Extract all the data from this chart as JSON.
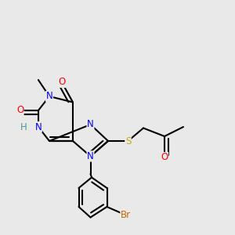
{
  "bg_color": "#e9e9e9",
  "bond_color": "#000000",
  "bond_lw": 1.5,
  "atom_bg": "#e9e9e9",
  "colors": {
    "N": "#0000ff",
    "O": "#ff0000",
    "S": "#ccaa00",
    "Br": "#cc6600",
    "H": "#4a9999",
    "C": "#000000"
  },
  "font_size": 7.5
}
